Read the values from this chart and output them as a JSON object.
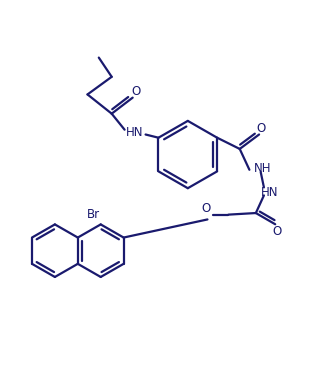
{
  "bg_color": "#ffffff",
  "line_color": "#1a1a6e",
  "line_width": 1.6,
  "font_size": 8.5,
  "figsize": [
    3.24,
    3.86
  ],
  "dpi": 100,
  "xlim": [
    0,
    10
  ],
  "ylim": [
    0,
    12
  ]
}
